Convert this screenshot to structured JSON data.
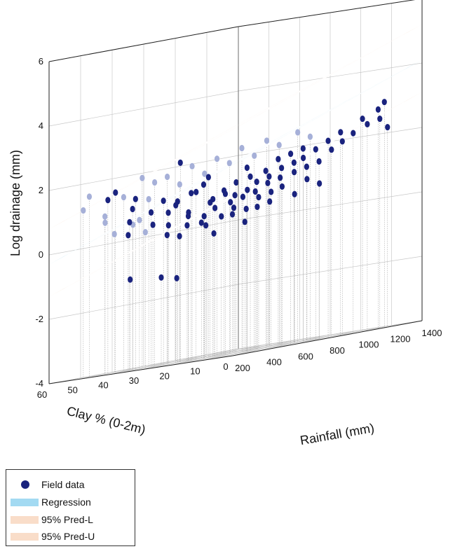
{
  "chart_data": {
    "type": "scatter",
    "title": "",
    "zlabel": "Log drainage (mm)",
    "xlabel": "Rainfall (mm)",
    "ylabel": "Clay % (0-2m)",
    "zlim": [
      -4,
      6
    ],
    "xlim": [
      200,
      1400
    ],
    "ylim": [
      0,
      60
    ],
    "z_ticks": [
      "-4",
      "-2",
      "0",
      "2",
      "4",
      "6"
    ],
    "x_ticks": [
      "200",
      "400",
      "600",
      "800",
      "1000",
      "1200",
      "1400"
    ],
    "y_ticks": [
      "0",
      "10",
      "20",
      "30",
      "40",
      "50",
      "60"
    ],
    "grid": true,
    "legend_position": "bottom-left",
    "surfaces": [
      {
        "name": "Regression",
        "z_at_low_rain_high_clay": -0.3,
        "z_at_high_rain_high_clay": 1.8,
        "z_at_low_rain_low_clay": 2.0,
        "z_at_high_rain_low_clay": 4.1,
        "color": "#87ceeb"
      },
      {
        "name": "95% Pred-L",
        "z_at_low_rain_high_clay": -1.3,
        "z_at_high_rain_high_clay": 0.8,
        "z_at_low_rain_low_clay": 1.0,
        "z_at_high_rain_low_clay": 3.1,
        "color": "#f8d9c6"
      },
      {
        "name": "95% Pred-U",
        "z_at_low_rain_high_clay": 0.8,
        "z_at_high_rain_high_clay": 2.9,
        "z_at_low_rain_low_clay": 3.1,
        "z_at_high_rain_low_clay": 5.2,
        "color": "#f8d9c6"
      }
    ],
    "series_field": {
      "name": "Field data",
      "color": "#1a237e",
      "points": [
        {
          "x": 330,
          "y": 45,
          "z": 1.6
        },
        {
          "x": 340,
          "y": 48,
          "z": 1.4
        },
        {
          "x": 360,
          "y": 40,
          "z": 1.3
        },
        {
          "x": 380,
          "y": 42,
          "z": 1.0
        },
        {
          "x": 400,
          "y": 44,
          "z": 0.6
        },
        {
          "x": 420,
          "y": 38,
          "z": 0.8
        },
        {
          "x": 430,
          "y": 46,
          "z": 0.2
        },
        {
          "x": 440,
          "y": 35,
          "z": 1.1
        },
        {
          "x": 450,
          "y": 30,
          "z": 2.2
        },
        {
          "x": 460,
          "y": 32,
          "z": 0.9
        },
        {
          "x": 470,
          "y": 40,
          "z": 0.4
        },
        {
          "x": 480,
          "y": 28,
          "z": 1.2
        },
        {
          "x": 490,
          "y": 36,
          "z": 0.7
        },
        {
          "x": 500,
          "y": 30,
          "z": 0.5
        },
        {
          "x": 510,
          "y": 34,
          "z": 1.0
        },
        {
          "x": 520,
          "y": 26,
          "z": 1.4
        },
        {
          "x": 530,
          "y": 38,
          "z": 0.3
        },
        {
          "x": 540,
          "y": 24,
          "z": 0.9
        },
        {
          "x": 550,
          "y": 30,
          "z": 1.2
        },
        {
          "x": 560,
          "y": 33,
          "z": 0.6
        },
        {
          "x": 570,
          "y": 27,
          "z": 1.6
        },
        {
          "x": 580,
          "y": 22,
          "z": 1.0
        },
        {
          "x": 590,
          "y": 35,
          "z": 0.2
        },
        {
          "x": 600,
          "y": 28,
          "z": 0.8
        },
        {
          "x": 610,
          "y": 20,
          "z": 1.3
        },
        {
          "x": 620,
          "y": 31,
          "z": 0.4
        },
        {
          "x": 630,
          "y": 25,
          "z": 1.1
        },
        {
          "x": 640,
          "y": 18,
          "z": 1.7
        },
        {
          "x": 650,
          "y": 29,
          "z": 0.6
        },
        {
          "x": 660,
          "y": 23,
          "z": 0.9
        },
        {
          "x": 670,
          "y": 33,
          "z": 0.1
        },
        {
          "x": 680,
          "y": 19,
          "z": 1.4
        },
        {
          "x": 690,
          "y": 26,
          "z": 0.7
        },
        {
          "x": 700,
          "y": 21,
          "z": 1.0
        },
        {
          "x": 710,
          "y": 30,
          "z": 0.3
        },
        {
          "x": 720,
          "y": 16,
          "z": 1.5
        },
        {
          "x": 730,
          "y": 24,
          "z": 0.8
        },
        {
          "x": 740,
          "y": 20,
          "z": 1.2
        },
        {
          "x": 750,
          "y": 28,
          "z": 0.5
        },
        {
          "x": 760,
          "y": 14,
          "z": 1.8
        },
        {
          "x": 770,
          "y": 22,
          "z": 0.9
        },
        {
          "x": 780,
          "y": 18,
          "z": 1.3
        },
        {
          "x": 790,
          "y": 26,
          "z": 0.4
        },
        {
          "x": 800,
          "y": 12,
          "z": 1.9
        },
        {
          "x": 810,
          "y": 20,
          "z": 1.1
        },
        {
          "x": 820,
          "y": 16,
          "z": 1.5
        },
        {
          "x": 830,
          "y": 24,
          "z": 0.7
        },
        {
          "x": 840,
          "y": 10,
          "z": 2.0
        },
        {
          "x": 850,
          "y": 18,
          "z": 1.2
        },
        {
          "x": 860,
          "y": 14,
          "z": 1.6
        },
        {
          "x": 870,
          "y": 22,
          "z": 0.8
        },
        {
          "x": 880,
          "y": 12,
          "z": 1.7
        },
        {
          "x": 900,
          "y": 16,
          "z": 1.3
        },
        {
          "x": 920,
          "y": 10,
          "z": 1.9
        },
        {
          "x": 940,
          "y": 14,
          "z": 1.4
        },
        {
          "x": 960,
          "y": 8,
          "z": 2.1
        },
        {
          "x": 980,
          "y": 12,
          "z": 1.5
        },
        {
          "x": 1000,
          "y": 6,
          "z": 2.3
        },
        {
          "x": 1020,
          "y": 10,
          "z": 1.8
        },
        {
          "x": 1050,
          "y": 8,
          "z": 2.0
        },
        {
          "x": 1080,
          "y": 6,
          "z": 2.2
        },
        {
          "x": 1100,
          "y": 4,
          "z": 2.6
        },
        {
          "x": 1150,
          "y": 5,
          "z": 2.4
        },
        {
          "x": 1180,
          "y": 3,
          "z": 2.8
        },
        {
          "x": 1200,
          "y": 2,
          "z": 3.0
        },
        {
          "x": 1210,
          "y": 4,
          "z": 2.5
        },
        {
          "x": 1220,
          "y": 2,
          "z": 2.2
        },
        {
          "x": 520,
          "y": 50,
          "z": -1.2
        },
        {
          "x": 620,
          "y": 45,
          "z": -1.3
        },
        {
          "x": 660,
          "y": 42,
          "z": -1.4
        },
        {
          "x": 560,
          "y": 40,
          "z": 0.0
        },
        {
          "x": 600,
          "y": 38,
          "z": -0.1
        },
        {
          "x": 700,
          "y": 36,
          "z": 0.2
        },
        {
          "x": 740,
          "y": 34,
          "z": -0.2
        },
        {
          "x": 780,
          "y": 30,
          "z": 0.3
        },
        {
          "x": 820,
          "y": 28,
          "z": 0.0
        },
        {
          "x": 860,
          "y": 26,
          "z": 0.4
        },
        {
          "x": 900,
          "y": 24,
          "z": 0.5
        },
        {
          "x": 940,
          "y": 22,
          "z": 0.9
        },
        {
          "x": 980,
          "y": 20,
          "z": 0.6
        },
        {
          "x": 1020,
          "y": 18,
          "z": 1.0
        },
        {
          "x": 1060,
          "y": 16,
          "z": 0.8
        }
      ]
    },
    "series_faded": {
      "name": "Field data (behind surface)",
      "color": "#a6b0d8",
      "points": [
        {
          "x": 300,
          "y": 52,
          "z": 1.6
        },
        {
          "x": 320,
          "y": 55,
          "z": 1.2
        },
        {
          "x": 360,
          "y": 50,
          "z": 0.9
        },
        {
          "x": 400,
          "y": 52,
          "z": 0.7
        },
        {
          "x": 440,
          "y": 48,
          "z": 1.4
        },
        {
          "x": 480,
          "y": 44,
          "z": 1.9
        },
        {
          "x": 520,
          "y": 42,
          "z": 1.7
        },
        {
          "x": 560,
          "y": 46,
          "z": 1.2
        },
        {
          "x": 600,
          "y": 42,
          "z": 1.8
        },
        {
          "x": 640,
          "y": 40,
          "z": 1.5
        },
        {
          "x": 680,
          "y": 38,
          "z": 2.0
        },
        {
          "x": 720,
          "y": 36,
          "z": 1.7
        },
        {
          "x": 760,
          "y": 34,
          "z": 2.1
        },
        {
          "x": 800,
          "y": 32,
          "z": 1.9
        },
        {
          "x": 840,
          "y": 30,
          "z": 2.3
        },
        {
          "x": 880,
          "y": 28,
          "z": 2.0
        },
        {
          "x": 920,
          "y": 26,
          "z": 2.4
        },
        {
          "x": 960,
          "y": 24,
          "z": 2.2
        },
        {
          "x": 1000,
          "y": 20,
          "z": 2.5
        },
        {
          "x": 1040,
          "y": 18,
          "z": 2.3
        },
        {
          "x": 420,
          "y": 50,
          "z": 0.3
        },
        {
          "x": 460,
          "y": 46,
          "z": 0.5
        },
        {
          "x": 500,
          "y": 44,
          "z": 0.2
        },
        {
          "x": 540,
          "y": 48,
          "z": 0.6
        }
      ]
    }
  },
  "legend": {
    "field": "Field data",
    "regression": "Regression",
    "pred_l": "95% Pred-L",
    "pred_u": "95% Pred-U"
  },
  "colors": {
    "regression": "#a3daf2",
    "pred": "#f9ddc9",
    "point": "#1a237e",
    "point_faded": "#a6b0d8",
    "grid": "#c8c8c8",
    "axis": "#222222"
  }
}
